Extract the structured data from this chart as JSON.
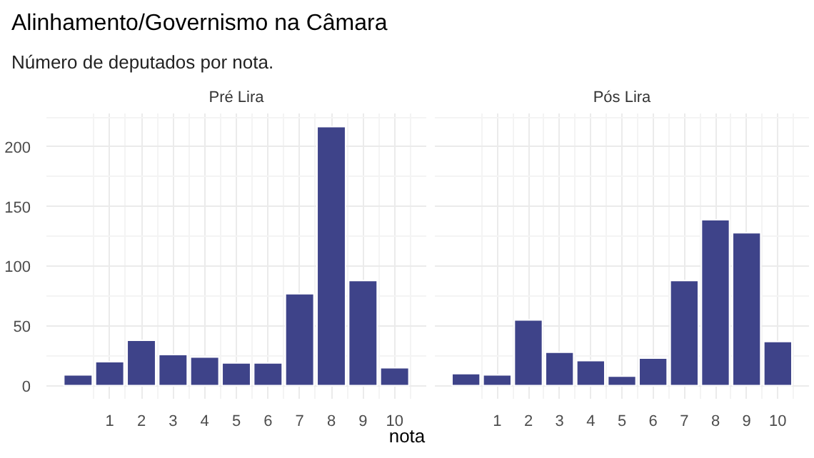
{
  "chart_data": [
    {
      "type": "other",
      "title": "Alinhamento/Governismo na Câmara",
      "subtitle": "Número de deputados por nota."
    },
    {
      "type": "bar",
      "title": "Pré Lira",
      "x": [
        0,
        1,
        2,
        3,
        4,
        5,
        6,
        7,
        8,
        9,
        10
      ],
      "values": [
        9,
        20,
        38,
        26,
        24,
        19,
        19,
        77,
        217,
        88,
        15
      ],
      "color": "#3e4389",
      "xlim": [
        -1,
        11
      ],
      "ylim": [
        -11,
        228
      ],
      "xticks": [
        1,
        2,
        3,
        4,
        5,
        6,
        7,
        8,
        9,
        10
      ],
      "yticks": [
        0,
        50,
        100,
        150,
        200
      ],
      "grid": true
    },
    {
      "type": "bar",
      "title": "Pós Lira",
      "xlabel": "nota",
      "x": [
        0,
        1,
        2,
        3,
        4,
        5,
        6,
        7,
        8,
        9,
        10
      ],
      "values": [
        10,
        9,
        55,
        28,
        21,
        8,
        23,
        88,
        139,
        128,
        37
      ],
      "color": "#3e4389",
      "xlim": [
        -1,
        11
      ],
      "ylim": [
        -11,
        228
      ],
      "xticks": [
        1,
        2,
        3,
        4,
        5,
        6,
        7,
        8,
        9,
        10
      ],
      "yticks": [
        0,
        50,
        100,
        150,
        200
      ],
      "grid": true,
      "tick_labels": "x"
    }
  ]
}
